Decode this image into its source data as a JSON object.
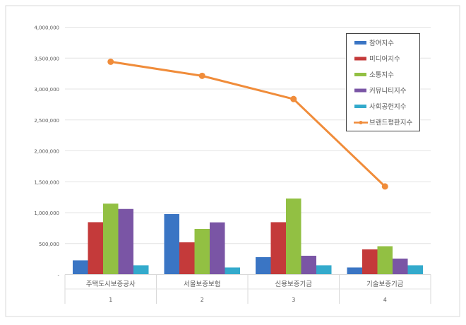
{
  "chart_data": {
    "type": "bar",
    "categories": [
      "주택도시보증공사",
      "서울보증보험",
      "신용보증기금",
      "기술보증기금"
    ],
    "category_numbers": [
      "1",
      "2",
      "3",
      "4"
    ],
    "ylim": [
      0,
      4000000
    ],
    "yticks": [
      "-",
      "500,000",
      "1,000,000",
      "1,500,000",
      "2,000,000",
      "2,500,000",
      "3,000,000",
      "3,500,000",
      "4,000,000"
    ],
    "ytick_values": [
      0,
      500000,
      1000000,
      1500000,
      2000000,
      2500000,
      3000000,
      3500000,
      4000000
    ],
    "grid": true,
    "legend_position": "top-right",
    "series": [
      {
        "name": "참여지수",
        "type": "bar",
        "color": "#3a75c4",
        "values": [
          229000,
          977000,
          280000,
          114000
        ]
      },
      {
        "name": "미디어지수",
        "type": "bar",
        "color": "#c43a3a",
        "values": [
          846000,
          520000,
          846000,
          406000
        ]
      },
      {
        "name": "소통지수",
        "type": "bar",
        "color": "#92c043",
        "values": [
          1146000,
          737000,
          1229000,
          457000
        ]
      },
      {
        "name": "커뮤니티지수",
        "type": "bar",
        "color": "#7a55a5",
        "values": [
          1060000,
          843000,
          303000,
          257000
        ]
      },
      {
        "name": "사회공헌지수",
        "type": "bar",
        "color": "#33aacc",
        "values": [
          149000,
          114000,
          149000,
          149000
        ]
      },
      {
        "name": "브랜드평판지수",
        "type": "line",
        "color": "#f08c3a",
        "values": [
          3441000,
          3213000,
          2838000,
          1424000
        ]
      }
    ]
  }
}
